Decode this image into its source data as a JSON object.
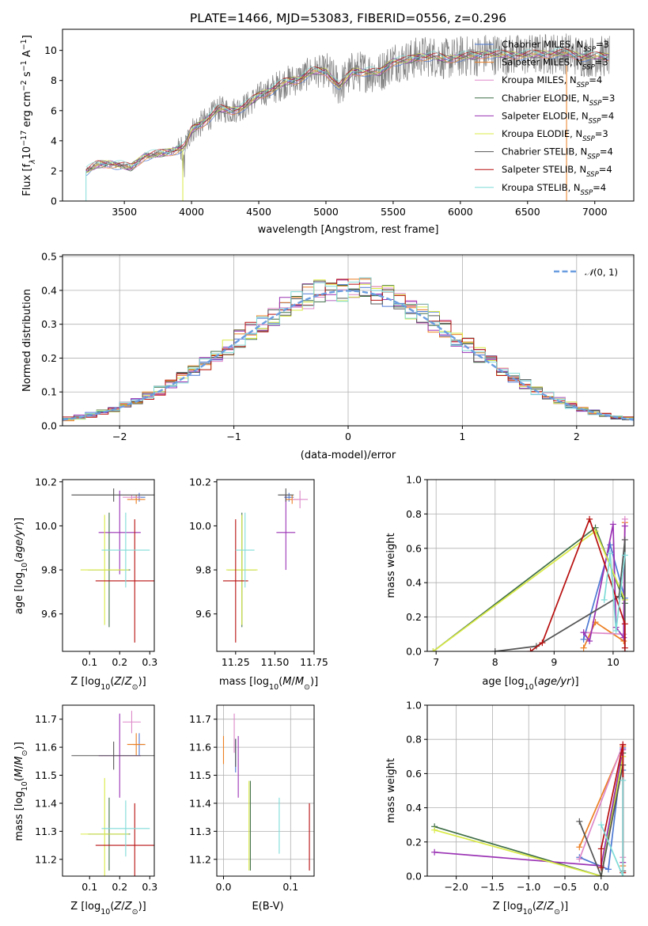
{
  "title": "PLATE=1466, MJD=53083, FIBERID=0556, z=0.296",
  "colors": {
    "Chabrier MILES": "#4c78d2",
    "Salpeter MILES": "#ec7f22",
    "Kroupa MILES": "#dd88c9",
    "Chabrier ELODIE": "#3f6e47",
    "Salpeter ELODIE": "#9a32b4",
    "Kroupa ELODIE": "#d9ea44",
    "Chabrier STELIB": "#555555",
    "Salpeter STELIB": "#b80f0f",
    "Kroupa STELIB": "#7fdcd8"
  },
  "chart_data": [
    {
      "type": "line",
      "panel": "spectrum",
      "xlabel": "wavelength [Angstrom, rest frame]",
      "ylabel": "Flux [f_λ10^-17 erg cm^-2 s^-1 A^-1]",
      "ylabel_parts": {
        "a": "Flux [f",
        "b": "λ",
        "c": "10",
        "d": "−17",
        "e": " erg cm",
        "f": "−2",
        "g": " s",
        "h": "−1",
        "i": " A",
        "j": "−1",
        "k": "]"
      },
      "xlim": [
        3040,
        7290
      ],
      "ylim": [
        0,
        11.4
      ],
      "xticks": [
        3500,
        4000,
        4500,
        5000,
        5500,
        6000,
        6500,
        7000
      ],
      "yticks": [
        0,
        2,
        4,
        6,
        8,
        10
      ],
      "data_color": "#808080",
      "spectrum_anchors": {
        "x": [
          3220,
          3300,
          3400,
          3550,
          3650,
          3750,
          3850,
          3950,
          4000,
          4100,
          4200,
          4300,
          4400,
          4500,
          4600,
          4700,
          4800,
          4900,
          5000,
          5100,
          5200,
          5300,
          5400,
          5500,
          5600,
          5700,
          5800,
          5900,
          6000,
          6100,
          6200,
          6300,
          6500,
          6700,
          6800,
          6900,
          7000,
          7100
        ],
        "y": [
          2.0,
          2.4,
          2.5,
          2.2,
          3.0,
          3.1,
          3.3,
          3.6,
          4.7,
          5.3,
          6.1,
          6.0,
          6.3,
          7.0,
          7.4,
          7.9,
          8.1,
          8.6,
          8.6,
          7.6,
          8.6,
          8.6,
          8.5,
          9.3,
          9.3,
          9.6,
          9.6,
          9.4,
          9.6,
          9.6,
          9.8,
          9.7,
          9.7,
          9.8,
          9.8,
          9.6,
          9.6,
          9.6
        ]
      },
      "series": [
        {
          "name": "Chabrier MILES",
          "nssp": "3"
        },
        {
          "name": "Salpeter MILES",
          "nssp": "3"
        },
        {
          "name": "Kroupa MILES",
          "nssp": "4"
        },
        {
          "name": "Chabrier ELODIE",
          "nssp": "3"
        },
        {
          "name": "Salpeter ELODIE",
          "nssp": "4"
        },
        {
          "name": "Kroupa ELODIE",
          "nssp": "3"
        },
        {
          "name": "Chabrier STELIB",
          "nssp": "4"
        },
        {
          "name": "Salpeter STELIB",
          "nssp": "4"
        },
        {
          "name": "Kroupa STELIB",
          "nssp": "4"
        }
      ],
      "legend": "upper right"
    },
    {
      "type": "histogram",
      "panel": "residuals",
      "xlabel": "(data-model)/error",
      "ylabel": "Normed distribution",
      "xlim": [
        -2.5,
        2.5
      ],
      "ylim": [
        0,
        0.505
      ],
      "xticks": [
        -2,
        -1,
        0,
        1,
        2
      ],
      "yticks": [
        0.0,
        0.1,
        0.2,
        0.3,
        0.4,
        0.5
      ],
      "grid": true,
      "bin_width": 0.1,
      "bin_start": -2.5,
      "gaussian": {
        "label_text": "(0, 1)",
        "mean": 0,
        "sigma": 1,
        "color": "#6a9de0"
      },
      "legend": "upper right"
    },
    {
      "type": "scatter",
      "panel": "age_vs_Z",
      "xlabel": "Z [log10(Z/Z⊙)]",
      "ylabel": "age [log10(age/yr)]",
      "xlim": [
        0.01,
        0.315
      ],
      "ylim": [
        9.43,
        10.21
      ],
      "xticks": [
        0.1,
        0.2,
        0.3
      ],
      "yticks": [
        9.6,
        9.8,
        10.0,
        10.2
      ],
      "points": [
        {
          "series": "Chabrier MILES",
          "x": 0.265,
          "y": 10.13,
          "xerr": 0.02,
          "yerr": 0.02
        },
        {
          "series": "Salpeter MILES",
          "x": 0.255,
          "y": 10.12,
          "xerr": 0.03,
          "yerr": 0.02
        },
        {
          "series": "Kroupa MILES",
          "x": 0.24,
          "y": 10.13,
          "xerr": 0.03,
          "yerr": 0.01
        },
        {
          "series": "Chabrier ELODIE",
          "x": 0.165,
          "y": 9.8,
          "xerr": 0.07,
          "yerr": 0.26
        },
        {
          "series": "Salpeter ELODIE",
          "x": 0.2,
          "y": 9.97,
          "xerr": 0.07,
          "yerr": 0.19
        },
        {
          "series": "Kroupa ELODIE",
          "x": 0.15,
          "y": 9.8,
          "xerr": 0.08,
          "yerr": 0.25
        },
        {
          "series": "Chabrier STELIB",
          "x": 0.18,
          "y": 10.14,
          "xerr": 0.14,
          "yerr": 0.03
        },
        {
          "series": "Salpeter STELIB",
          "x": 0.25,
          "y": 9.75,
          "xerr": 0.13,
          "yerr": 0.28
        },
        {
          "series": "Kroupa STELIB",
          "x": 0.22,
          "y": 9.89,
          "xerr": 0.08,
          "yerr": 0.17
        }
      ]
    },
    {
      "type": "scatter",
      "panel": "age_vs_mass",
      "xlabel": "mass [log10(M/M⊙)]",
      "ylabel": "",
      "xlim": [
        11.13,
        11.75
      ],
      "ylim": [
        9.43,
        10.21
      ],
      "xticks": [
        11.25,
        11.5,
        11.75
      ],
      "yticks": [
        9.6,
        9.8,
        10.0,
        10.2
      ],
      "points": [
        {
          "series": "Chabrier MILES",
          "x": 11.59,
          "y": 10.13,
          "xerr": 0.03,
          "yerr": 0.02
        },
        {
          "series": "Salpeter MILES",
          "x": 11.61,
          "y": 10.12,
          "xerr": 0.04,
          "yerr": 0.02
        },
        {
          "series": "Kroupa MILES",
          "x": 11.66,
          "y": 10.12,
          "xerr": 0.05,
          "yerr": 0.04
        },
        {
          "series": "Chabrier ELODIE",
          "x": 11.29,
          "y": 9.8,
          "xerr": 0.09,
          "yerr": 0.26
        },
        {
          "series": "Salpeter ELODIE",
          "x": 11.57,
          "y": 9.97,
          "xerr": 0.06,
          "yerr": 0.17
        },
        {
          "series": "Kroupa ELODIE",
          "x": 11.29,
          "y": 9.8,
          "xerr": 0.1,
          "yerr": 0.25
        },
        {
          "series": "Chabrier STELIB",
          "x": 11.57,
          "y": 10.14,
          "xerr": 0.05,
          "yerr": 0.03
        },
        {
          "series": "Salpeter STELIB",
          "x": 11.25,
          "y": 9.75,
          "xerr": 0.08,
          "yerr": 0.28
        },
        {
          "series": "Kroupa STELIB",
          "x": 11.31,
          "y": 9.89,
          "xerr": 0.06,
          "yerr": 0.17
        }
      ]
    },
    {
      "type": "line",
      "panel": "weight_vs_age",
      "xlabel": "age [log10(age/yr)]",
      "ylabel": "mass weight",
      "xlim": [
        6.85,
        10.35
      ],
      "ylim": [
        0,
        1.0
      ],
      "xticks": [
        7,
        8,
        9,
        10
      ],
      "yticks": [
        0.0,
        0.2,
        0.4,
        0.6,
        0.8,
        1.0
      ],
      "grid": true,
      "series": [
        {
          "name": "Chabrier MILES",
          "x": [
            9.5,
            9.95,
            10.2
          ],
          "y": [
            0.07,
            0.62,
            0.31
          ]
        },
        {
          "name": "Salpeter MILES",
          "x": [
            9.5,
            9.7,
            10.18,
            10.2
          ],
          "y": [
            0.02,
            0.17,
            0.06,
            0.75
          ]
        },
        {
          "name": "Kroupa MILES",
          "x": [
            9.5,
            10.18,
            10.2
          ],
          "y": [
            0.11,
            0.1,
            0.77
          ]
        },
        {
          "name": "Chabrier ELODIE",
          "x": [
            6.95,
            9.7,
            10.2
          ],
          "y": [
            0.0,
            0.72,
            0.28
          ]
        },
        {
          "name": "Salpeter ELODIE",
          "x": [
            9.5,
            9.6,
            10.0,
            10.05,
            10.18,
            10.2
          ],
          "y": [
            0.11,
            0.06,
            0.74,
            0.14,
            0.08,
            0.73
          ]
        },
        {
          "name": "Kroupa ELODIE",
          "x": [
            6.95,
            9.7,
            10.2
          ],
          "y": [
            0.0,
            0.7,
            0.3
          ]
        },
        {
          "name": "Chabrier STELIB",
          "x": [
            8.0,
            8.7,
            10.1,
            10.2,
            10.2
          ],
          "y": [
            0.0,
            0.03,
            0.32,
            0.65,
            0.0
          ]
        },
        {
          "name": "Salpeter STELIB",
          "x": [
            8.6,
            8.8,
            9.6,
            10.2,
            10.2
          ],
          "y": [
            0.0,
            0.05,
            0.77,
            0.16,
            0.02
          ]
        },
        {
          "name": "Kroupa STELIB",
          "x": [
            9.85,
            9.95,
            10.05,
            10.2
          ],
          "y": [
            0.3,
            0.57,
            0.12,
            0.56
          ]
        }
      ]
    },
    {
      "type": "scatter",
      "panel": "mass_vs_Z",
      "xlabel": "Z [log10(Z/Z⊙)]",
      "ylabel": "mass [log10(M/M⊙)]",
      "xlim": [
        0.01,
        0.315
      ],
      "ylim": [
        11.14,
        11.75
      ],
      "xticks": [
        0.1,
        0.2,
        0.3
      ],
      "yticks": [
        11.2,
        11.3,
        11.4,
        11.5,
        11.6,
        11.7
      ],
      "points": [
        {
          "series": "Chabrier MILES",
          "x": 0.265,
          "y": 11.61,
          "xerr": 0.02,
          "yerr": 0.04
        },
        {
          "series": "Salpeter MILES",
          "x": 0.255,
          "y": 11.61,
          "xerr": 0.03,
          "yerr": 0.04
        },
        {
          "series": "Kroupa MILES",
          "x": 0.24,
          "y": 11.69,
          "xerr": 0.03,
          "yerr": 0.04
        },
        {
          "series": "Chabrier ELODIE",
          "x": 0.165,
          "y": 11.29,
          "xerr": 0.07,
          "yerr": 0.13
        },
        {
          "series": "Salpeter ELODIE",
          "x": 0.2,
          "y": 11.57,
          "xerr": 0.07,
          "yerr": 0.15
        },
        {
          "series": "Kroupa ELODIE",
          "x": 0.15,
          "y": 11.29,
          "xerr": 0.08,
          "yerr": 0.2
        },
        {
          "series": "Chabrier STELIB",
          "x": 0.18,
          "y": 11.57,
          "xerr": 0.14,
          "yerr": 0.05
        },
        {
          "series": "Salpeter STELIB",
          "x": 0.25,
          "y": 11.25,
          "xerr": 0.13,
          "yerr": 0.15
        },
        {
          "series": "Kroupa STELIB",
          "x": 0.22,
          "y": 11.31,
          "xerr": 0.08,
          "yerr": 0.1
        }
      ]
    },
    {
      "type": "scatter",
      "panel": "mass_vs_ebv",
      "xlabel": "E(B-V)",
      "ylabel": "",
      "xlim": [
        -0.01,
        0.135
      ],
      "ylim": [
        11.14,
        11.75
      ],
      "xticks": [
        0.0,
        0.1
      ],
      "yticks": [
        11.2,
        11.3,
        11.4,
        11.5,
        11.6,
        11.7
      ],
      "points": [
        {
          "series": "Chabrier MILES",
          "x": 0.018,
          "y": 11.57,
          "yerr": 0.06
        },
        {
          "series": "Salpeter MILES",
          "x": 0.0,
          "y": 11.59,
          "yerr": 0.05
        },
        {
          "series": "Kroupa MILES",
          "x": 0.016,
          "y": 11.65,
          "yerr": 0.07
        },
        {
          "series": "Chabrier ELODIE",
          "x": 0.04,
          "y": 11.32,
          "yerr": 0.16
        },
        {
          "series": "Salpeter ELODIE",
          "x": 0.022,
          "y": 11.53,
          "yerr": 0.11
        },
        {
          "series": "Kroupa ELODIE",
          "x": 0.038,
          "y": 11.32,
          "yerr": 0.16
        },
        {
          "series": "Chabrier STELIB",
          "x": 0.018,
          "y": 11.58,
          "yerr": 0.05
        },
        {
          "series": "Salpeter STELIB",
          "x": 0.128,
          "y": 11.28,
          "yerr": 0.12
        },
        {
          "series": "Kroupa STELIB",
          "x": 0.083,
          "y": 11.32,
          "yerr": 0.1
        }
      ]
    },
    {
      "type": "line",
      "panel": "weight_vs_Z",
      "xlabel": "Z [log10(Z/Z⊙)]",
      "ylabel": "mass weight",
      "xlim": [
        -2.4,
        0.45
      ],
      "ylim": [
        0,
        1.0
      ],
      "xticks": [
        -2.0,
        -1.5,
        -1.0,
        -0.5,
        0.0
      ],
      "yticks": [
        0.0,
        0.2,
        0.4,
        0.6,
        0.8,
        1.0
      ],
      "grid": true,
      "series": [
        {
          "name": "Chabrier MILES",
          "x": [
            -0.3,
            0.1,
            0.3,
            0.3
          ],
          "y": [
            0.11,
            0.04,
            0.75,
            0.62
          ]
        },
        {
          "name": "Salpeter MILES",
          "x": [
            -0.3,
            0.3,
            0.3
          ],
          "y": [
            0.17,
            0.76,
            0.06
          ]
        },
        {
          "name": "Kroupa MILES",
          "x": [
            -0.3,
            0.3,
            0.3
          ],
          "y": [
            0.1,
            0.77,
            0.11
          ]
        },
        {
          "name": "Chabrier ELODIE",
          "x": [
            -2.3,
            0.0,
            0.3
          ],
          "y": [
            0.29,
            0.0,
            0.72
          ]
        },
        {
          "name": "Salpeter ELODIE",
          "x": [
            -2.3,
            0.0,
            0.3,
            0.3
          ],
          "y": [
            0.14,
            0.06,
            0.74,
            0.08
          ]
        },
        {
          "name": "Kroupa ELODIE",
          "x": [
            -2.3,
            0.0,
            0.3
          ],
          "y": [
            0.27,
            0.0,
            0.7
          ]
        },
        {
          "name": "Chabrier STELIB",
          "x": [
            -0.3,
            0.0,
            0.3,
            0.3
          ],
          "y": [
            0.32,
            0.0,
            0.65,
            0.03
          ]
        },
        {
          "name": "Salpeter STELIB",
          "x": [
            0.0,
            0.0,
            0.3,
            0.3
          ],
          "y": [
            0.05,
            0.16,
            0.77,
            0.02
          ]
        },
        {
          "name": "Kroupa STELIB",
          "x": [
            0.0,
            0.3,
            0.3
          ],
          "y": [
            0.3,
            0.0,
            0.56
          ]
        }
      ]
    }
  ]
}
